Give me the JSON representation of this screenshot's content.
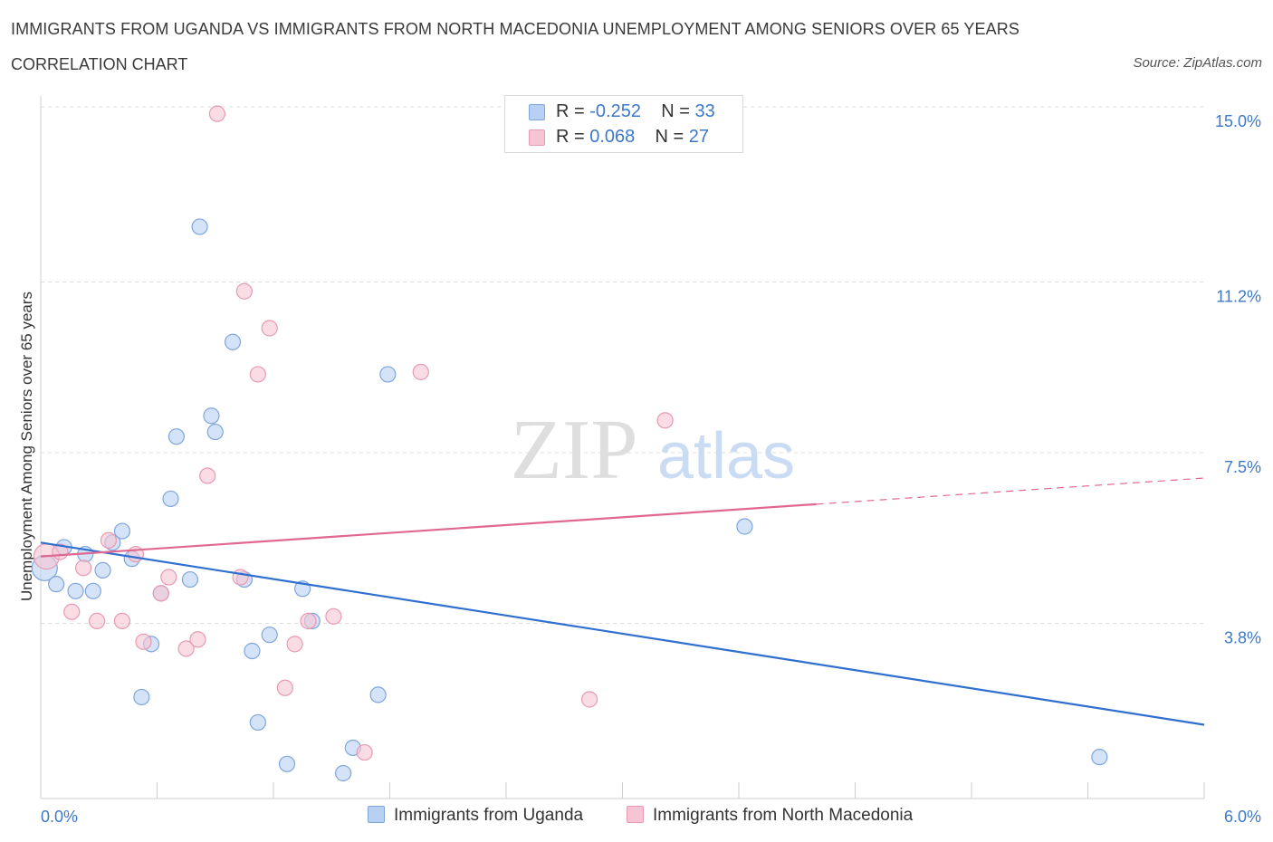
{
  "title": "IMMIGRANTS FROM UGANDA VS IMMIGRANTS FROM NORTH MACEDONIA UNEMPLOYMENT AMONG SENIORS OVER 65 YEARS",
  "subtitle": "CORRELATION CHART",
  "source": "Source: ZipAtlas.com",
  "watermark": {
    "zip": "ZIP",
    "atlas": "atlas"
  },
  "colors": {
    "uganda_fill": "#b8d0f3",
    "uganda_stroke": "#7ea6dc",
    "uganda_line": "#2f6fcf",
    "macedonia_fill": "#f6c4d3",
    "macedonia_stroke": "#e79ab3",
    "macedonia_line": "#e06890",
    "axis_label": "#3d78c9",
    "grid": "#dcdcdc"
  },
  "legend_top": {
    "rows": [
      {
        "r_label": "R = ",
        "r_value": "-0.252",
        "n_label": "N = ",
        "n_value": "33"
      },
      {
        "r_label": "R = ",
        "r_value": "0.068",
        "n_label": "N = ",
        "n_value": "27"
      }
    ]
  },
  "legend_bottom": [
    "Immigrants from Uganda",
    "Immigrants from North Macedonia"
  ],
  "chart_data": {
    "type": "scatter",
    "xlabel": "",
    "ylabel": "Unemployment Among Seniors over 65 years",
    "xlim": [
      0,
      6.0
    ],
    "ylim": [
      0,
      15.0
    ],
    "x_tick_labels": [
      {
        "value": 0,
        "label": "0.0%"
      },
      {
        "value": 6.0,
        "label": "6.0%"
      }
    ],
    "y_tick_labels": [
      {
        "value": 3.8,
        "label": "3.8%"
      },
      {
        "value": 7.5,
        "label": "7.5%"
      },
      {
        "value": 11.2,
        "label": "11.2%"
      },
      {
        "value": 15.0,
        "label": "15.0%"
      }
    ],
    "grid": true,
    "legend_position": "top-center",
    "series": [
      {
        "name": "Immigrants from Uganda",
        "points": [
          [
            0.02,
            5.0
          ],
          [
            0.08,
            4.65
          ],
          [
            0.12,
            5.45
          ],
          [
            0.18,
            4.5
          ],
          [
            0.23,
            5.3
          ],
          [
            0.27,
            4.5
          ],
          [
            0.32,
            4.95
          ],
          [
            0.37,
            5.55
          ],
          [
            0.42,
            5.8
          ],
          [
            0.47,
            5.2
          ],
          [
            0.52,
            2.2
          ],
          [
            0.57,
            3.35
          ],
          [
            0.62,
            4.45
          ],
          [
            0.67,
            6.5
          ],
          [
            0.7,
            7.85
          ],
          [
            0.77,
            4.75
          ],
          [
            0.82,
            12.4
          ],
          [
            0.88,
            8.3
          ],
          [
            0.9,
            7.95
          ],
          [
            0.99,
            9.9
          ],
          [
            1.05,
            4.75
          ],
          [
            1.09,
            3.2
          ],
          [
            1.12,
            1.65
          ],
          [
            1.18,
            3.55
          ],
          [
            1.27,
            0.75
          ],
          [
            1.35,
            4.55
          ],
          [
            1.4,
            3.85
          ],
          [
            1.56,
            0.55
          ],
          [
            1.61,
            1.1
          ],
          [
            1.74,
            2.25
          ],
          [
            1.79,
            9.2
          ],
          [
            3.63,
            5.9
          ],
          [
            5.46,
            0.9
          ]
        ],
        "trend": {
          "x": [
            0,
            6.0
          ],
          "y": [
            5.55,
            1.6
          ]
        }
      },
      {
        "name": "Immigrants from North Macedonia",
        "points": [
          [
            0.03,
            5.25
          ],
          [
            0.1,
            5.35
          ],
          [
            0.16,
            4.05
          ],
          [
            0.22,
            5.0
          ],
          [
            0.29,
            3.85
          ],
          [
            0.35,
            5.6
          ],
          [
            0.42,
            3.85
          ],
          [
            0.49,
            5.3
          ],
          [
            0.53,
            3.4
          ],
          [
            0.62,
            4.45
          ],
          [
            0.66,
            4.8
          ],
          [
            0.75,
            3.25
          ],
          [
            0.81,
            3.45
          ],
          [
            0.86,
            7.0
          ],
          [
            0.91,
            14.85
          ],
          [
            1.03,
            4.8
          ],
          [
            1.05,
            11.0
          ],
          [
            1.12,
            9.2
          ],
          [
            1.18,
            10.2
          ],
          [
            1.26,
            2.4
          ],
          [
            1.31,
            3.35
          ],
          [
            1.38,
            3.85
          ],
          [
            1.51,
            3.95
          ],
          [
            1.67,
            1.0
          ],
          [
            1.96,
            9.25
          ],
          [
            2.83,
            2.15
          ],
          [
            3.22,
            8.2
          ]
        ],
        "trend": {
          "x": [
            0,
            6.0
          ],
          "y": [
            5.25,
            6.95
          ],
          "solid_until": 4.0
        }
      }
    ]
  }
}
